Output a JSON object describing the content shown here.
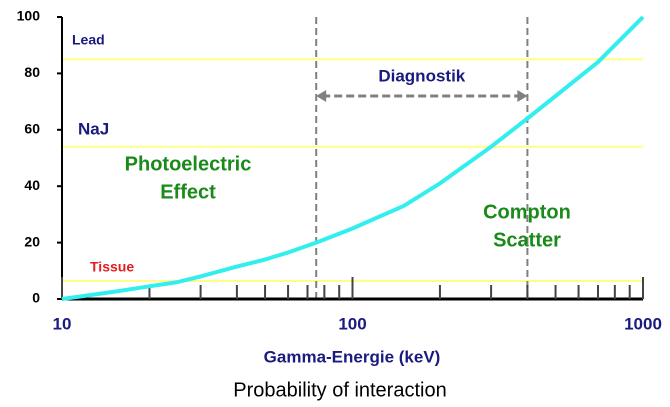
{
  "chart_data": {
    "type": "line",
    "xlabel": "Gamma-Energie (keV)",
    "caption": "Probability of interaction",
    "x": [
      10,
      15,
      20,
      25,
      30,
      40,
      50,
      60,
      75,
      100,
      150,
      200,
      300,
      400,
      500,
      700,
      1000
    ],
    "values": [
      0,
      2.5,
      4.5,
      6,
      8,
      11.5,
      14,
      16.5,
      20,
      25,
      33,
      41,
      54,
      64,
      72,
      84,
      100
    ],
    "color": "#33eeee",
    "xscale": "log",
    "xlim": [
      10,
      1000
    ],
    "xticks": [
      10,
      100,
      1000
    ],
    "xminorticks": [
      20,
      30,
      40,
      50,
      60,
      70,
      80,
      90,
      200,
      300,
      400,
      500,
      600,
      700,
      800,
      900
    ],
    "ylim": [
      0,
      100
    ],
    "yticks": [
      0,
      20,
      40,
      60,
      80,
      100
    ],
    "hlines": [
      {
        "label": "Lead",
        "value": 85,
        "color": "#ffff88",
        "label_color": "#1a1a80"
      },
      {
        "label": "NaJ",
        "value": 54,
        "color": "#ffff88",
        "label_color": "#1a1a80"
      },
      {
        "label": "Tissue",
        "value": 6.4,
        "color": "#ffff88",
        "label_color": "#e02020"
      }
    ],
    "range_arrow": {
      "label": "Diagnostik",
      "from": 75,
      "to": 400,
      "y": 72,
      "color": "#808080",
      "label_color": "#1a1a80"
    },
    "annotations": [
      {
        "lines": [
          "Photoelectric",
          "Effect"
        ],
        "color": "#1a8a1a"
      },
      {
        "lines": [
          "Compton",
          "Scatter"
        ],
        "color": "#1a8a1a"
      }
    ]
  }
}
